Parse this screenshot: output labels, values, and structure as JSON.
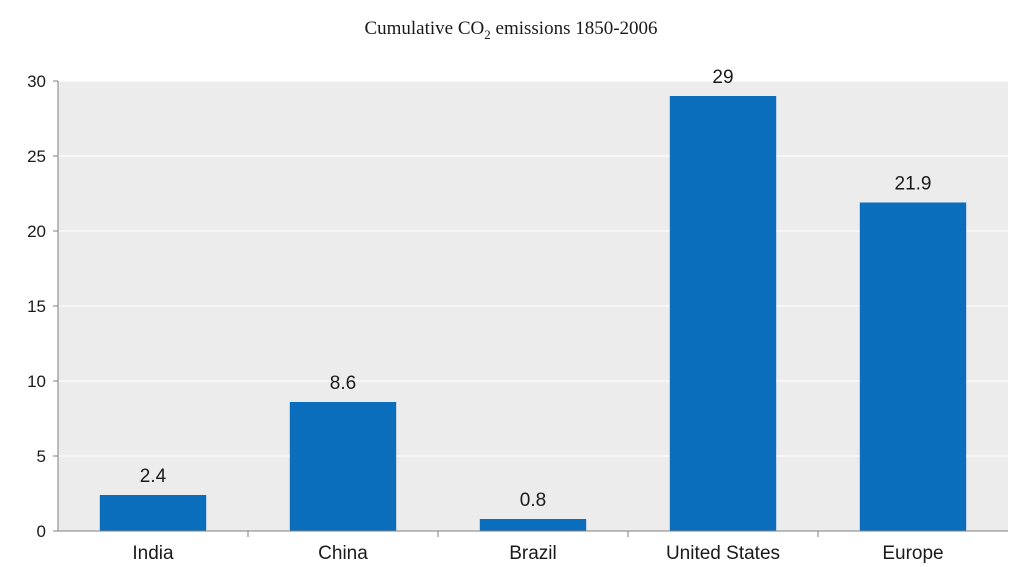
{
  "chart_data": {
    "type": "bar",
    "title_main": "Cumulative CO",
    "title_sub": "2",
    "title_rest": " emissions 1850-2006",
    "categories": [
      "India",
      "China",
      "Brazil",
      "United States",
      "Europe"
    ],
    "values": [
      2.4,
      8.6,
      0.8,
      29,
      21.9
    ],
    "data_labels": [
      "2.4",
      "8.6",
      "0.8",
      "29",
      "21.9"
    ],
    "yticks": [
      0,
      5,
      10,
      15,
      20,
      25,
      30
    ],
    "ytick_labels": [
      "0",
      "5",
      "10",
      "15",
      "20",
      "25",
      "30"
    ],
    "ylim": [
      0,
      30
    ],
    "grid": true,
    "colors": {
      "bar": "#0a6ebd",
      "plot_bg": "#ececec",
      "gridline": "#ffffff",
      "axis": "#7f7f7f"
    }
  }
}
